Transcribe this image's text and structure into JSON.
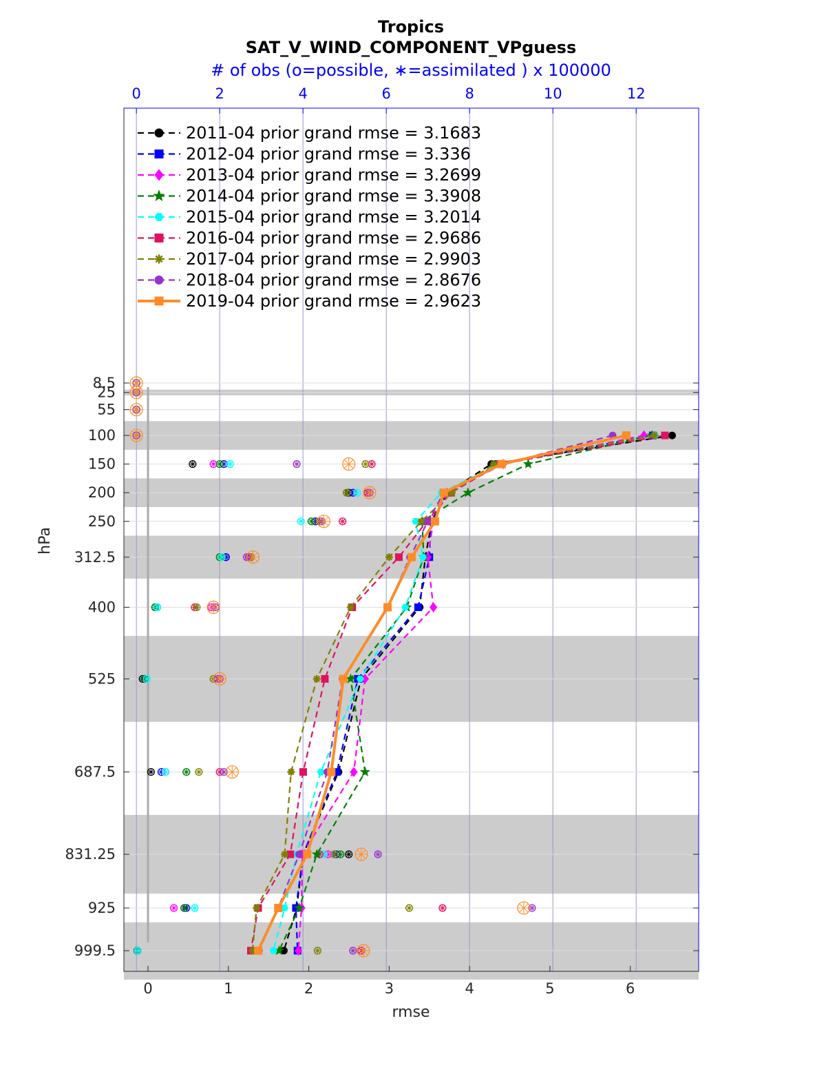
{
  "chart_data": {
    "type": "line",
    "title": "Tropics",
    "subtitle": "SAT_V_WIND_COMPONENT_VPguess",
    "top_axis_label": "# of obs (o=possible, ∗=assimilated ) x 100000",
    "xlabel": "rmse",
    "ylabel": "hPa",
    "xlim": [
      -0.3,
      6.85
    ],
    "top_xlim": [
      -0.3,
      13.5
    ],
    "x_ticks": [
      0,
      1,
      2,
      3,
      4,
      5,
      6
    ],
    "top_ticks": [
      0,
      2,
      4,
      6,
      8,
      10,
      12
    ],
    "levels": [
      8.5,
      25,
      55,
      100,
      150,
      200,
      250,
      312.5,
      400,
      525,
      687.5,
      831.25,
      925,
      999.5
    ],
    "level_labels": [
      "8.5",
      "25",
      "55",
      "100",
      "150",
      "200",
      "250",
      "312.5",
      "400",
      "525",
      "687.5",
      "831.25",
      "925",
      "999.5"
    ],
    "shaded_bands": [
      [
        20,
        30
      ],
      [
        75,
        125
      ],
      [
        175,
        225
      ],
      [
        275,
        350
      ],
      [
        450,
        600
      ],
      [
        762.5,
        900
      ],
      [
        950,
        1050
      ]
    ],
    "legend_position": "top-left",
    "grid": true,
    "series": [
      {
        "label": "2011-04 prior grand rmse = 3.1683",
        "color": "#000000",
        "marker": "circle",
        "dash": true,
        "levels": [
          100,
          150,
          200,
          250,
          312.5,
          400,
          525,
          687.5,
          831.25,
          925,
          999.5
        ],
        "rmse": [
          6.52,
          4.27,
          3.72,
          3.53,
          3.45,
          3.38,
          2.65,
          2.37,
          1.93,
          1.85,
          1.69
        ],
        "obs_levels": [
          150,
          200,
          250,
          312.5,
          400,
          525,
          687.5,
          831.25,
          925,
          999.5
        ],
        "obs": [
          1.35,
          5.1,
          4.3,
          2.15,
          0.45,
          0.15,
          0.35,
          5.1,
          1.15,
          0.02
        ]
      },
      {
        "label": "2012-04 prior grand rmse = 3.336",
        "color": "#0000ff",
        "marker": "square",
        "dash": true,
        "levels": [
          100,
          150,
          200,
          250,
          312.5,
          400,
          525,
          687.5,
          831.25,
          925,
          999.5
        ],
        "rmse": [
          6.28,
          4.35,
          3.73,
          3.52,
          3.5,
          3.36,
          2.61,
          2.35,
          1.93,
          1.84,
          1.86
        ],
        "obs_levels": [
          150,
          200,
          250,
          312.5,
          400,
          525,
          687.5,
          831.25,
          925,
          999.5
        ],
        "obs": [
          2.1,
          5.2,
          4.3,
          2.15,
          0.5,
          0.2,
          0.6,
          4.8,
          1.2,
          0.03
        ]
      },
      {
        "label": "2013-04 prior grand rmse = 3.2699",
        "color": "#ff00ff",
        "marker": "diamond",
        "dash": true,
        "levels": [
          100,
          150,
          200,
          250,
          312.5,
          400,
          525,
          687.5,
          831.25,
          925,
          999.5
        ],
        "rmse": [
          6.17,
          4.42,
          3.72,
          3.55,
          3.48,
          3.55,
          2.7,
          2.56,
          1.92,
          1.91,
          1.87
        ],
        "obs_levels": [
          150,
          200,
          250,
          312.5,
          400,
          525,
          687.5,
          831.25,
          925,
          999.5
        ],
        "obs": [
          1.85,
          5.55,
          4.4,
          2.7,
          1.8,
          0.2,
          0.7,
          4.6,
          0.9,
          0.02
        ]
      },
      {
        "label": "2014-04 prior grand rmse = 3.3908",
        "color": "#008000",
        "marker": "star",
        "dash": true,
        "levels": [
          100,
          150,
          200,
          250,
          312.5,
          400,
          525,
          687.5,
          831.25,
          925,
          999.5
        ],
        "rmse": [
          6.27,
          4.73,
          3.98,
          3.41,
          3.43,
          3.22,
          2.52,
          2.7,
          2.1,
          1.88,
          1.63
        ],
        "obs_levels": [
          150,
          200,
          250,
          312.5,
          400,
          525,
          687.5,
          831.25,
          925,
          999.5
        ],
        "obs": [
          2.0,
          5.05,
          4.2,
          2.0,
          0.45,
          0.2,
          1.2,
          4.9,
          1.15,
          0.02
        ]
      },
      {
        "label": "2015-04 prior grand rmse = 3.2014",
        "color": "#00ffff",
        "marker": "hexagon",
        "dash": true,
        "levels": [
          100,
          150,
          200,
          250,
          312.5,
          400,
          525,
          687.5,
          831.25,
          925,
          999.5
        ],
        "rmse": [
          6.31,
          4.36,
          3.65,
          3.33,
          3.42,
          3.2,
          2.64,
          2.15,
          1.85,
          1.7,
          1.56
        ],
        "obs_levels": [
          150,
          200,
          250,
          312.5,
          400,
          525,
          687.5,
          831.25,
          925,
          999.5
        ],
        "obs": [
          2.25,
          5.3,
          3.95,
          2.05,
          0.5,
          0.25,
          0.7,
          4.5,
          1.4,
          0.03
        ]
      },
      {
        "label": "2016-04 prior grand rmse = 2.9686",
        "color": "#e0115f",
        "marker": "square",
        "dash": true,
        "levels": [
          100,
          150,
          200,
          250,
          312.5,
          400,
          525,
          687.5,
          831.25,
          925,
          999.5
        ],
        "rmse": [
          6.43,
          4.38,
          3.77,
          3.47,
          3.12,
          2.54,
          2.2,
          1.93,
          1.77,
          1.37,
          1.28
        ],
        "obs_levels": [
          150,
          200,
          250,
          312.5,
          400,
          525,
          687.5,
          831.25,
          925,
          999.5
        ],
        "obs": [
          5.65,
          5.55,
          4.95,
          2.75,
          1.4,
          2.0,
          2.0,
          4.4,
          7.35,
          5.4
        ]
      },
      {
        "label": "2017-04 prior grand rmse = 2.9903",
        "color": "#808000",
        "marker": "asterisk",
        "dash": true,
        "levels": [
          100,
          150,
          200,
          250,
          312.5,
          400,
          525,
          687.5,
          831.25,
          925,
          999.5
        ],
        "rmse": [
          6.3,
          4.3,
          3.78,
          3.4,
          3.0,
          2.52,
          2.1,
          1.78,
          1.7,
          1.35,
          1.3
        ],
        "obs_levels": [
          150,
          200,
          250,
          312.5,
          400,
          525,
          687.5,
          831.25,
          925,
          999.5
        ],
        "obs": [
          5.5,
          5.05,
          4.4,
          2.75,
          1.45,
          1.85,
          1.5,
          4.75,
          6.55,
          4.35
        ]
      },
      {
        "label": "2018-04 prior grand rmse = 2.8676",
        "color": "#9932cc",
        "marker": "circle",
        "dash": true,
        "levels": [
          100,
          150,
          200,
          250,
          312.5,
          400,
          525,
          687.5,
          831.25,
          925,
          999.5
        ],
        "rmse": [
          5.78,
          4.41,
          3.68,
          3.48,
          3.26,
          2.98,
          2.42,
          2.23,
          1.88,
          1.62,
          1.38
        ],
        "obs_levels": [
          150,
          200,
          250,
          312.5,
          400,
          525,
          687.5,
          831.25,
          925,
          999.5
        ],
        "obs": [
          3.85,
          5.6,
          4.45,
          2.65,
          1.9,
          1.95,
          2.1,
          5.8,
          9.5,
          5.2
        ]
      },
      {
        "label": "2019-04 prior grand rmse = 2.9623",
        "color": "#ff8c28",
        "marker": "square",
        "dash": false,
        "levels": [
          100,
          150,
          200,
          250,
          312.5,
          400,
          525,
          687.5,
          831.25,
          925,
          999.5
        ],
        "rmse": [
          5.95,
          4.4,
          3.68,
          3.57,
          3.28,
          2.98,
          2.43,
          2.28,
          1.98,
          1.62,
          1.37
        ],
        "obs_levels": [
          150,
          200,
          250,
          312.5,
          400,
          525,
          687.5,
          831.25,
          925,
          999.5
        ],
        "obs": [
          5.1,
          5.6,
          4.5,
          2.8,
          1.85,
          2.0,
          2.3,
          5.4,
          9.3,
          5.45
        ]
      }
    ]
  }
}
